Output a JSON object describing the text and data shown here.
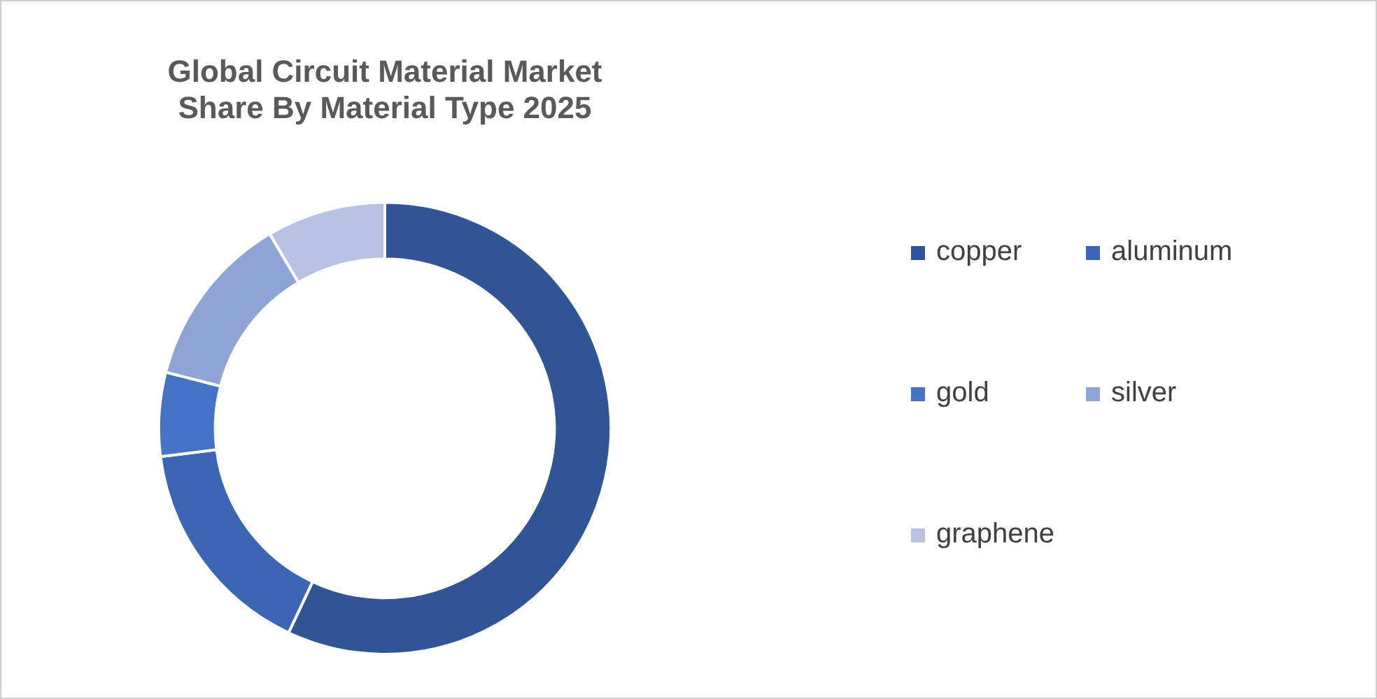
{
  "chart_data": {
    "type": "donut",
    "title": "Global Circuit Material Market Share By Material Type 2025",
    "categories": [
      "copper",
      "aluminum",
      "gold",
      "silver",
      "graphene"
    ],
    "values": [
      57,
      16,
      6,
      12.5,
      8.5
    ],
    "colors": [
      "#2f5597",
      "#3a66b5",
      "#4472c4",
      "#8fa4d6",
      "#b6c1e3"
    ],
    "legend": "right"
  }
}
